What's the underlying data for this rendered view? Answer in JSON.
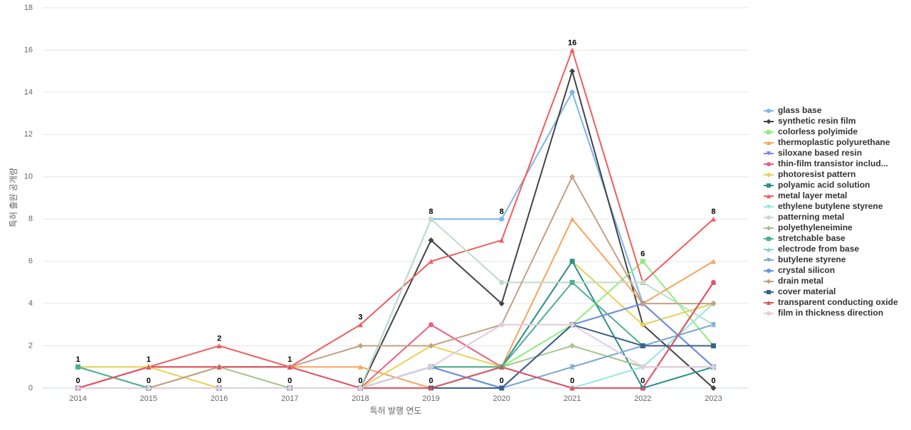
{
  "chart_data": {
    "type": "line",
    "x_label": "특허 발행 연도",
    "y_label": "특허 출원 공개량",
    "categories": [
      "2014",
      "2015",
      "2016",
      "2017",
      "2018",
      "2019",
      "2020",
      "2021",
      "2022",
      "2023"
    ],
    "ylim": [
      0,
      18
    ],
    "yticks": [
      0,
      2,
      4,
      6,
      8,
      10,
      12,
      14,
      16,
      18
    ],
    "grid": true,
    "legend": "right",
    "series": [
      {
        "name": "glass base",
        "color": "#7cb5ec",
        "marker": "circle",
        "values": [
          0,
          0,
          0,
          0,
          0,
          8,
          8,
          14,
          4,
          1
        ]
      },
      {
        "name": "synthetic resin film",
        "color": "#434348",
        "marker": "diamond",
        "values": [
          0,
          0,
          0,
          0,
          0,
          7,
          4,
          15,
          3,
          0
        ]
      },
      {
        "name": "colorless polyimide",
        "color": "#90ed7d",
        "marker": "square",
        "values": [
          0,
          0,
          0,
          0,
          0,
          0,
          1,
          3,
          6,
          2
        ]
      },
      {
        "name": "thermoplastic polyurethane",
        "color": "#f7a35c",
        "marker": "triangle",
        "values": [
          0,
          1,
          1,
          1,
          1,
          0,
          1,
          8,
          4,
          6
        ]
      },
      {
        "name": "siloxane based resin",
        "color": "#8085e9",
        "marker": "triangle-down",
        "values": [
          0,
          0,
          0,
          0,
          0,
          1,
          0,
          3,
          4,
          1
        ]
      },
      {
        "name": "thin-film transistor includ...",
        "color": "#f15c80",
        "marker": "circle",
        "values": [
          0,
          0,
          0,
          0,
          0,
          3,
          1,
          0,
          0,
          5
        ]
      },
      {
        "name": "photoresist pattern",
        "color": "#e4d354",
        "marker": "diamond",
        "values": [
          1,
          1,
          0,
          0,
          0,
          2,
          1,
          6,
          3,
          4
        ]
      },
      {
        "name": "polyamic acid solution",
        "color": "#2b908f",
        "marker": "square",
        "values": [
          0,
          0,
          0,
          0,
          0,
          0,
          1,
          6,
          0,
          1
        ]
      },
      {
        "name": "metal layer metal",
        "color": "#f45b5b",
        "marker": "triangle",
        "values": [
          0,
          1,
          2,
          1,
          3,
          6,
          7,
          16,
          5,
          8
        ]
      },
      {
        "name": "ethylene butylene styrene",
        "color": "#91e8e1",
        "marker": "triangle-down",
        "values": [
          1,
          0,
          0,
          0,
          0,
          0,
          1,
          0,
          1,
          4
        ]
      },
      {
        "name": "patterning metal",
        "color": "#bfdcc8",
        "marker": "circle",
        "values": [
          0,
          0,
          0,
          0,
          0,
          8,
          5,
          5,
          5,
          3
        ]
      },
      {
        "name": "polyethyleneimine",
        "color": "#a5c48a",
        "marker": "diamond",
        "values": [
          1,
          0,
          1,
          0,
          0,
          1,
          1,
          2,
          1,
          1
        ]
      },
      {
        "name": "stretchable base",
        "color": "#4caf8f",
        "marker": "square",
        "values": [
          1,
          0,
          0,
          0,
          0,
          1,
          1,
          5,
          2,
          2
        ]
      },
      {
        "name": "electrode from base",
        "color": "#7dd3e0",
        "marker": "triangle",
        "values": [
          0,
          0,
          0,
          0,
          0,
          0,
          0,
          1,
          2,
          3
        ]
      },
      {
        "name": "butylene styrene",
        "color": "#7fa7d6",
        "marker": "triangle-down",
        "values": [
          0,
          0,
          0,
          0,
          0,
          1,
          0,
          1,
          2,
          3
        ]
      },
      {
        "name": "crystal silicon",
        "color": "#6c8ee0",
        "marker": "circle",
        "values": [
          0,
          0,
          0,
          0,
          0,
          1,
          0,
          3,
          4,
          1
        ]
      },
      {
        "name": "drain metal",
        "color": "#c4a080",
        "marker": "diamond",
        "values": [
          0,
          0,
          1,
          1,
          2,
          2,
          3,
          10,
          4,
          4
        ]
      },
      {
        "name": "cover material",
        "color": "#3d5f8a",
        "marker": "square",
        "values": [
          0,
          0,
          0,
          0,
          0,
          0,
          0,
          3,
          2,
          2
        ]
      },
      {
        "name": "transparent conducting oxide",
        "color": "#e05060",
        "marker": "triangle",
        "values": [
          0,
          1,
          1,
          1,
          0,
          0,
          1,
          0,
          0,
          5
        ]
      },
      {
        "name": "film in thickness direction",
        "color": "#e2cce0",
        "marker": "circle",
        "values": [
          0,
          0,
          0,
          0,
          0,
          1,
          3,
          3,
          1,
          1
        ]
      }
    ]
  }
}
